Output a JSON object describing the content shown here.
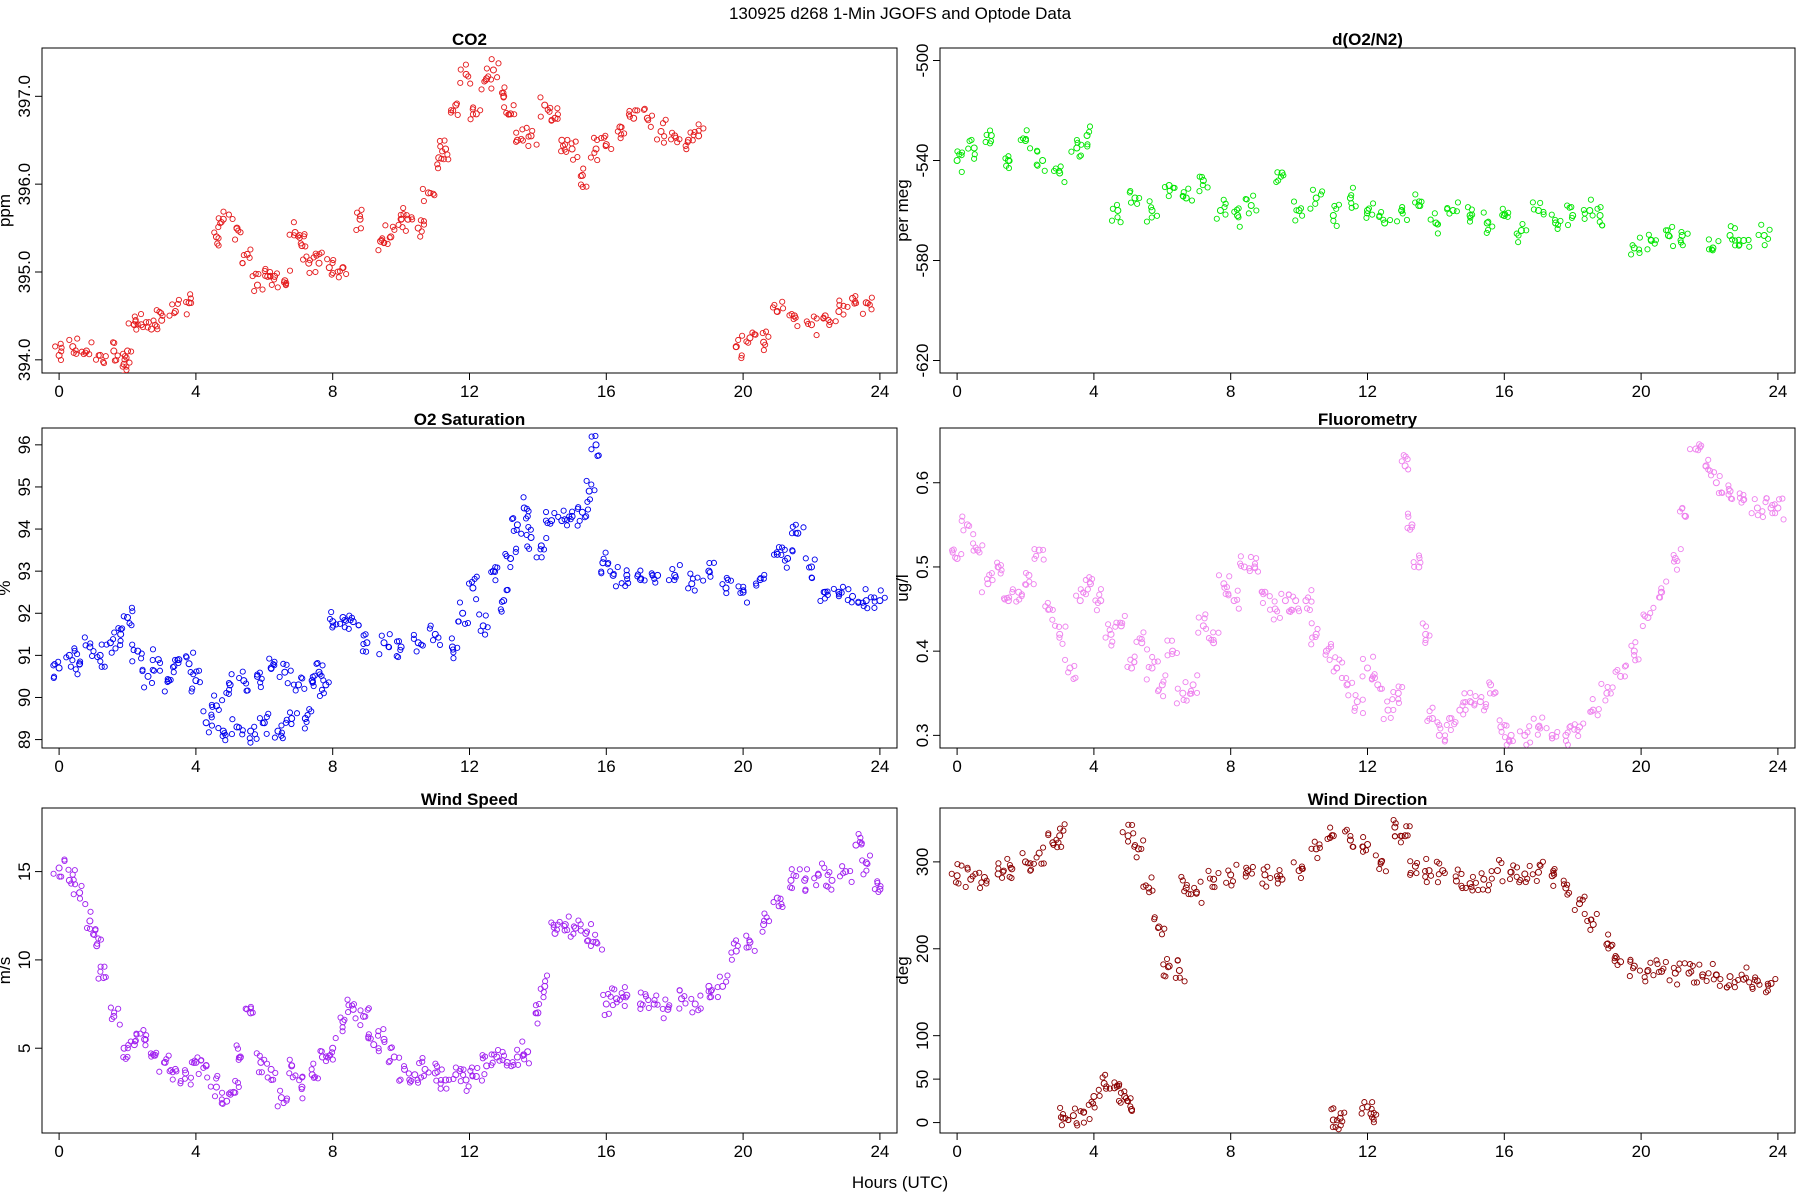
{
  "figure": {
    "title": "130925   d268   1-Min  JGOFS and Optode Data",
    "xlabel": "Hours (UTC)"
  },
  "chart_data": [
    {
      "type": "scatter",
      "title": "CO2",
      "ylabel": "ppm",
      "color": "#e41a1c",
      "xlim": [
        -0.5,
        24.5
      ],
      "ylim": [
        393.85,
        397.55
      ],
      "xticks": [
        0,
        4,
        8,
        12,
        16,
        20,
        24
      ],
      "yticks": [
        394.0,
        395.0,
        396.0,
        397.0
      ],
      "ytick_labels": [
        "394.0",
        "395.0",
        "396.0",
        "397.0"
      ],
      "series": [
        {
          "x": [
            0.0,
            0.4,
            0.8,
            1.2,
            1.6,
            1.9,
            2.0,
            2.2,
            2.4,
            2.7,
            3.0,
            3.4,
            3.8,
            4.6,
            4.8,
            5.2,
            5.5,
            5.8,
            6.1,
            6.3,
            6.6,
            6.9,
            7.1,
            7.3,
            7.6,
            7.9,
            8.3,
            8.8,
            9.4,
            9.7,
            10.0,
            10.2,
            10.5,
            10.8,
            11.1,
            11.3,
            11.6,
            11.9,
            12.2,
            12.5,
            12.7,
            13.0,
            13.2,
            13.4,
            13.8,
            14.2,
            14.5,
            14.7,
            15.0,
            15.3,
            15.7,
            16.0,
            16.4,
            16.8,
            17.2,
            17.6,
            18.0,
            18.4,
            18.7,
            19.8,
            20.2,
            20.6,
            21.0,
            21.5,
            22.0,
            22.4,
            22.8,
            23.2,
            23.6
          ],
          "y": [
            394.05,
            394.15,
            394.1,
            394.05,
            394.1,
            393.95,
            394.1,
            394.4,
            394.4,
            394.35,
            394.45,
            394.55,
            394.65,
            395.4,
            395.6,
            395.5,
            395.2,
            394.85,
            394.95,
            394.95,
            394.9,
            395.45,
            395.3,
            395.1,
            395.1,
            395.05,
            395.05,
            395.6,
            395.35,
            395.4,
            395.6,
            395.6,
            395.5,
            395.9,
            396.3,
            396.4,
            396.9,
            397.25,
            396.8,
            397.2,
            397.3,
            397.0,
            396.8,
            396.5,
            396.55,
            396.9,
            396.75,
            396.5,
            396.4,
            396.1,
            396.4,
            396.45,
            396.65,
            396.75,
            396.75,
            396.6,
            396.55,
            396.5,
            396.55,
            394.15,
            394.25,
            394.2,
            394.55,
            394.5,
            394.4,
            394.5,
            394.55,
            394.7,
            394.65
          ]
        }
      ]
    },
    {
      "type": "scatter",
      "title": "d(O2/N2)",
      "ylabel": "per meg",
      "color": "#00e600",
      "xlim": [
        -0.5,
        24.5
      ],
      "ylim": [
        -625,
        -495
      ],
      "xticks": [
        0,
        4,
        8,
        12,
        16,
        20,
        24
      ],
      "yticks": [
        -500,
        -540,
        -580,
        -620
      ],
      "ytick_labels": [
        "-500",
        "-540",
        "-580",
        "-620"
      ],
      "series": [
        {
          "x": [
            0.0,
            0.5,
            1.0,
            1.5,
            2.0,
            2.5,
            3.0,
            3.5,
            3.8,
            4.7,
            5.2,
            5.7,
            6.2,
            6.7,
            7.2,
            7.7,
            8.2,
            8.6,
            9.5,
            10.0,
            10.5,
            11.0,
            11.5,
            12.0,
            12.5,
            13.0,
            13.5,
            14.0,
            14.5,
            15.0,
            15.5,
            16.0,
            16.5,
            17.0,
            17.5,
            18.0,
            18.5,
            18.8,
            19.8,
            20.3,
            20.8,
            21.2,
            22.1,
            22.6,
            23.0,
            23.6
          ],
          "y": [
            -540,
            -535,
            -530,
            -540,
            -532,
            -540,
            -545,
            -535,
            -530,
            -560,
            -555,
            -560,
            -550,
            -555,
            -548,
            -560,
            -562,
            -558,
            -545,
            -560,
            -555,
            -562,
            -555,
            -560,
            -565,
            -560,
            -558,
            -565,
            -560,
            -562,
            -565,
            -562,
            -568,
            -560,
            -565,
            -562,
            -560,
            -562,
            -575,
            -572,
            -570,
            -570,
            -575,
            -570,
            -572,
            -570
          ]
        }
      ]
    },
    {
      "type": "scatter",
      "title": "O2 Saturation",
      "ylabel": "%",
      "color": "#0000ee",
      "xlim": [
        -0.5,
        24.5
      ],
      "ylim": [
        88.8,
        96.4
      ],
      "xticks": [
        0,
        4,
        8,
        12,
        16,
        20,
        24
      ],
      "yticks": [
        89,
        90,
        91,
        92,
        93,
        94,
        95,
        96
      ],
      "ytick_labels": [
        "89",
        "90",
        "91",
        "92",
        "93",
        "94",
        "95",
        "96"
      ],
      "series": [
        {
          "x": [
            0.0,
            0.3,
            0.6,
            0.9,
            1.2,
            1.5,
            1.8,
            2.0,
            2.3,
            2.6,
            2.9,
            3.2,
            3.5,
            3.8,
            4.0,
            4.3,
            4.6,
            4.8,
            5.0,
            5.2,
            5.4,
            5.6,
            5.8,
            6.0,
            6.2,
            6.4,
            6.6,
            6.8,
            7.0,
            7.2,
            7.4,
            7.6,
            7.8,
            8.0,
            8.3,
            8.6,
            9.0,
            9.5,
            10.0,
            10.5,
            11.0,
            11.5,
            11.8,
            12.1,
            12.4,
            12.7,
            13.0,
            13.2,
            13.4,
            13.6,
            13.8,
            14.1,
            14.4,
            14.7,
            15.0,
            15.3,
            15.5,
            15.7,
            15.9,
            16.2,
            16.6,
            17.0,
            17.5,
            18.0,
            18.5,
            19.0,
            19.5,
            20.0,
            20.5,
            21.0,
            21.3,
            21.6,
            22.0,
            22.4,
            22.8,
            23.2,
            23.6,
            24.0
          ],
          "y": [
            90.7,
            91.0,
            90.8,
            91.2,
            91.0,
            91.3,
            91.5,
            91.9,
            91.1,
            90.5,
            90.9,
            90.4,
            90.9,
            90.8,
            90.4,
            89.4,
            89.8,
            89.2,
            90.3,
            89.3,
            90.4,
            89.2,
            90.5,
            89.4,
            90.7,
            89.2,
            90.6,
            89.5,
            90.3,
            89.5,
            90.4,
            90.6,
            90.3,
            91.8,
            91.9,
            91.8,
            91.3,
            91.3,
            91.2,
            91.3,
            91.5,
            91.2,
            92.0,
            92.6,
            91.7,
            93.0,
            92.3,
            93.3,
            94.1,
            94.5,
            93.8,
            93.6,
            94.2,
            94.2,
            94.3,
            94.4,
            94.9,
            96.0,
            93.2,
            92.9,
            92.9,
            92.8,
            92.9,
            92.9,
            92.7,
            93.0,
            92.6,
            92.5,
            92.8,
            93.4,
            93.3,
            93.9,
            93.1,
            92.5,
            92.5,
            92.4,
            92.3,
            92.3
          ]
        }
      ]
    },
    {
      "type": "scatter",
      "title": "Fluorometry",
      "ylabel": "ug/l",
      "color": "#ee82ee",
      "xlim": [
        -0.5,
        24.5
      ],
      "ylim": [
        0.285,
        0.665
      ],
      "xticks": [
        0,
        4,
        8,
        12,
        16,
        20,
        24
      ],
      "yticks": [
        0.3,
        0.4,
        0.5,
        0.6
      ],
      "ytick_labels": [
        "0.3",
        "0.4",
        "0.5",
        "0.6"
      ],
      "series": [
        {
          "x": [
            0.0,
            0.3,
            0.6,
            0.9,
            1.2,
            1.5,
            1.8,
            2.1,
            2.4,
            2.7,
            3.0,
            3.3,
            3.6,
            3.9,
            4.2,
            4.5,
            4.8,
            5.1,
            5.4,
            5.7,
            6.0,
            6.3,
            6.6,
            6.9,
            7.2,
            7.5,
            7.8,
            8.1,
            8.4,
            8.7,
            9.0,
            9.3,
            9.6,
            9.9,
            10.2,
            10.5,
            10.8,
            11.1,
            11.4,
            11.7,
            12.0,
            12.3,
            12.6,
            12.9,
            13.1,
            13.3,
            13.5,
            13.7,
            13.9,
            14.1,
            14.4,
            14.7,
            15.0,
            15.3,
            15.6,
            15.9,
            16.2,
            16.6,
            17.0,
            17.4,
            17.8,
            18.2,
            18.6,
            19.0,
            19.4,
            19.8,
            20.2,
            20.6,
            21.0,
            21.3,
            21.6,
            21.9,
            22.2,
            22.6,
            23.0,
            23.4,
            23.8,
            24.0
          ],
          "y": [
            0.51,
            0.55,
            0.52,
            0.48,
            0.5,
            0.46,
            0.47,
            0.49,
            0.52,
            0.45,
            0.42,
            0.38,
            0.46,
            0.48,
            0.46,
            0.42,
            0.43,
            0.38,
            0.41,
            0.38,
            0.36,
            0.4,
            0.35,
            0.36,
            0.43,
            0.41,
            0.48,
            0.46,
            0.5,
            0.5,
            0.47,
            0.45,
            0.46,
            0.46,
            0.46,
            0.42,
            0.4,
            0.38,
            0.36,
            0.34,
            0.38,
            0.36,
            0.33,
            0.35,
            0.62,
            0.55,
            0.5,
            0.42,
            0.32,
            0.3,
            0.32,
            0.33,
            0.34,
            0.34,
            0.36,
            0.31,
            0.3,
            0.3,
            0.31,
            0.3,
            0.3,
            0.31,
            0.33,
            0.35,
            0.37,
            0.4,
            0.44,
            0.47,
            0.51,
            0.56,
            0.64,
            0.62,
            0.6,
            0.59,
            0.58,
            0.57,
            0.57,
            0.57
          ]
        }
      ]
    },
    {
      "type": "scatter",
      "title": "Wind Speed",
      "ylabel": "m/s",
      "color": "#a020f0",
      "xlim": [
        -0.5,
        24.5
      ],
      "ylim": [
        0.2,
        18.6
      ],
      "xticks": [
        0,
        4,
        8,
        12,
        16,
        20,
        24
      ],
      "yticks": [
        5,
        10,
        15
      ],
      "ytick_labels": [
        "5",
        "10",
        "15"
      ],
      "series": [
        {
          "x": [
            0.0,
            0.3,
            0.6,
            0.9,
            1.1,
            1.3,
            1.6,
            1.9,
            2.2,
            2.5,
            2.8,
            3.1,
            3.4,
            3.7,
            4.0,
            4.3,
            4.6,
            4.9,
            5.1,
            5.3,
            5.6,
            5.9,
            6.2,
            6.5,
            6.8,
            7.1,
            7.4,
            7.7,
            8.0,
            8.3,
            8.6,
            8.9,
            9.2,
            9.5,
            9.8,
            10.1,
            10.4,
            10.7,
            11.0,
            11.3,
            11.6,
            11.9,
            12.2,
            12.5,
            12.8,
            13.1,
            13.4,
            13.7,
            14.0,
            14.2,
            14.5,
            14.8,
            15.1,
            15.4,
            15.7,
            16.0,
            16.3,
            16.6,
            17.0,
            17.4,
            17.8,
            18.2,
            18.6,
            19.0,
            19.4,
            19.8,
            20.2,
            20.6,
            21.0,
            21.4,
            21.8,
            22.2,
            22.6,
            23.0,
            23.3,
            23.6,
            24.0
          ],
          "y": [
            15.2,
            14.5,
            13.8,
            12.2,
            10.8,
            9.0,
            6.8,
            5.0,
            5.2,
            5.5,
            4.6,
            4.2,
            3.8,
            3.6,
            4.2,
            4.0,
            2.8,
            2.0,
            2.5,
            4.5,
            7.0,
            4.2,
            3.8,
            2.2,
            4.0,
            2.8,
            3.5,
            4.5,
            5.0,
            6.5,
            7.2,
            6.8,
            5.2,
            5.5,
            4.5,
            3.8,
            3.5,
            3.8,
            3.6,
            3.2,
            3.5,
            3.2,
            3.4,
            4.0,
            4.5,
            4.2,
            4.5,
            4.8,
            7.0,
            8.5,
            11.5,
            12.0,
            11.8,
            11.5,
            11.0,
            7.5,
            7.8,
            8.0,
            7.5,
            7.5,
            7.2,
            7.8,
            7.5,
            8.5,
            8.5,
            10.5,
            11.0,
            12.0,
            13.5,
            14.5,
            14.5,
            14.8,
            14.5,
            15.0,
            16.5,
            15.5,
            14.0
          ]
        }
      ]
    },
    {
      "type": "scatter",
      "title": "Wind Direction",
      "ylabel": "deg",
      "color": "#8b0000",
      "xlim": [
        -0.5,
        24.5
      ],
      "ylim": [
        -12,
        362
      ],
      "xticks": [
        0,
        4,
        8,
        12,
        16,
        20,
        24
      ],
      "yticks": [
        0,
        50,
        100,
        200,
        300
      ],
      "ytick_labels": [
        "0",
        "50",
        "100",
        "200",
        "300"
      ],
      "series": [
        {
          "x": [
            0.0,
            0.4,
            0.8,
            1.2,
            1.6,
            2.0,
            2.4,
            2.8,
            3.0,
            3.1,
            3.4,
            3.7,
            4.0,
            4.3,
            4.6,
            4.9,
            5.1,
            5.0,
            5.3,
            5.6,
            5.9,
            6.2,
            6.5,
            6.7,
            7.0,
            7.5,
            8.0,
            8.5,
            9.0,
            9.5,
            10.0,
            10.5,
            11.0,
            11.5,
            12.0,
            12.4,
            12.8,
            13.1,
            13.4,
            13.8,
            14.2,
            14.6,
            15.0,
            15.4,
            15.8,
            16.2,
            16.6,
            17.0,
            17.4,
            17.8,
            18.2,
            18.6,
            19.0,
            19.4,
            19.8,
            20.2,
            20.6,
            21.0,
            21.4,
            21.8,
            22.2,
            22.6,
            23.0,
            23.4,
            23.8,
            11.0,
            11.2,
            12.0,
            12.1
          ],
          "y": [
            284,
            280,
            282,
            286,
            292,
            300,
            310,
            322,
            330,
            5,
            8,
            12,
            30,
            45,
            40,
            30,
            15,
            330,
            315,
            270,
            225,
            180,
            175,
            270,
            265,
            280,
            285,
            290,
            285,
            280,
            290,
            315,
            330,
            325,
            320,
            300,
            340,
            330,
            295,
            290,
            290,
            278,
            275,
            280,
            290,
            288,
            286,
            288,
            284,
            270,
            252,
            228,
            205,
            185,
            180,
            175,
            174,
            172,
            172,
            170,
            170,
            168,
            165,
            163,
            160,
            3,
            5,
            18,
            10
          ]
        }
      ]
    }
  ]
}
